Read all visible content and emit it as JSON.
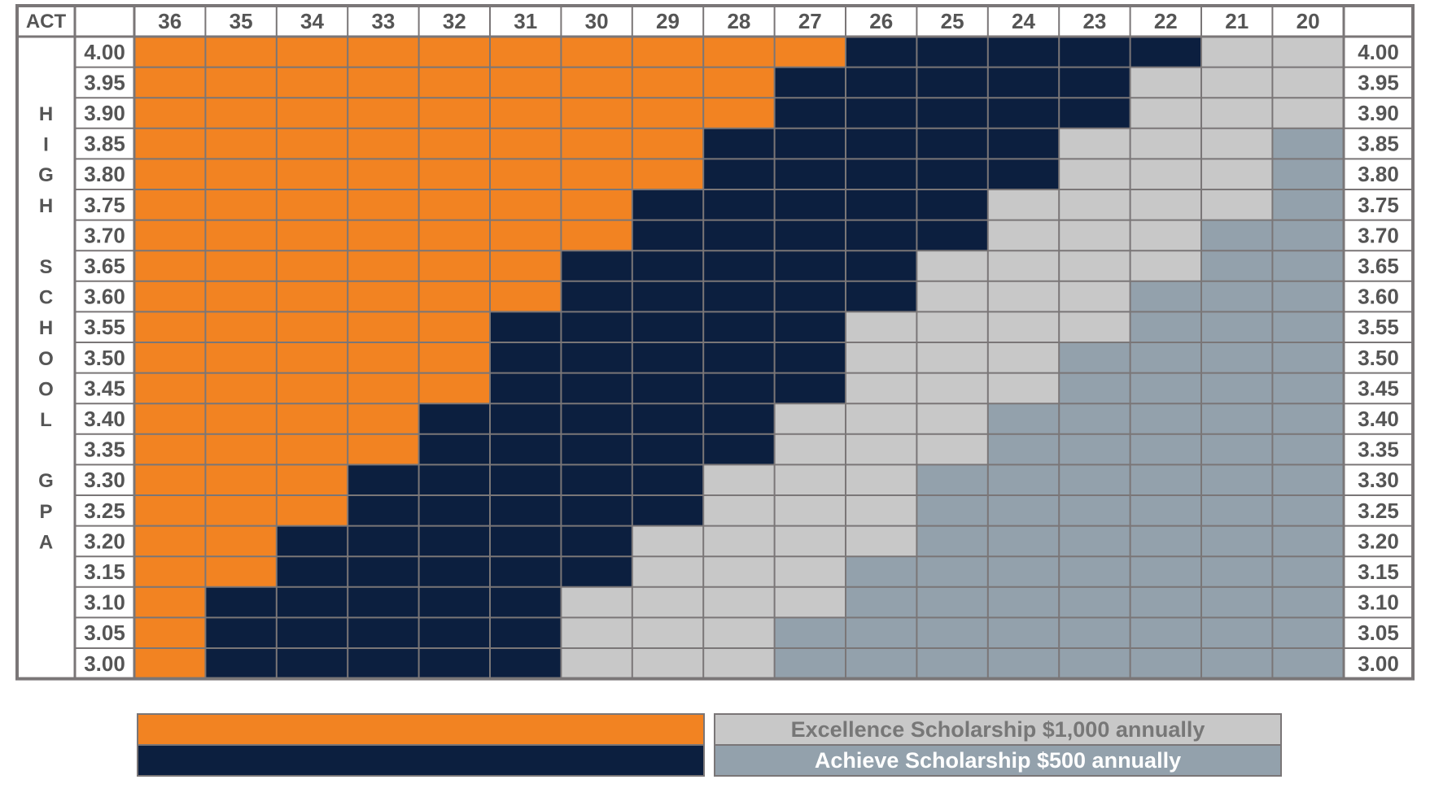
{
  "chart_data": {
    "type": "heatmap",
    "corner_label": "ACT",
    "act_scores": [
      "36",
      "35",
      "34",
      "33",
      "32",
      "31",
      "30",
      "29",
      "28",
      "27",
      "26",
      "25",
      "24",
      "23",
      "22",
      "21",
      "20"
    ],
    "gpa_values": [
      "4.00",
      "3.95",
      "3.90",
      "3.85",
      "3.80",
      "3.75",
      "3.70",
      "3.65",
      "3.60",
      "3.55",
      "3.50",
      "3.45",
      "3.40",
      "3.35",
      "3.30",
      "3.25",
      "3.20",
      "3.15",
      "3.10",
      "3.05",
      "3.00"
    ],
    "side_label_letters": [
      "H",
      "I",
      "G",
      "H",
      "",
      "S",
      "C",
      "H",
      "O",
      "O",
      "L",
      "",
      "G",
      "P",
      "A"
    ],
    "cell_levels": [
      "OOOOOOOOOONNNNNLL",
      "OOOOOOOOONNNNNLLL",
      "OOOOOOOOONNNNNLLL",
      "OOOOOOOONNNNNLLLA",
      "OOOOOOOONNNNNLLLA",
      "OOOOOOONNNNNLLLLA",
      "OOOOOOONNNNNLLLAA",
      "OOOOOONNNNNLLLLAA",
      "OOOOOONNNNNLLLAAA",
      "OOOOONNNNNLLLLAAA",
      "OOOOONNNNNLLLAAAA",
      "OOOOONNNNNLLLAAAA",
      "OOOONNNNNLLLAAAAA",
      "OOOONNNNNLLLAAAAA",
      "OOONNNNNLLLAAAAAA",
      "OOONNNNNLLLAAAAAA",
      "OONNNNNLLLLAAAAAA",
      "OONNNNNLLLAAAAAAA",
      "ONNNNNLLLLAAAAAAA",
      "ONNNNNLLLAAAAAAAA",
      "ONNNNNLLLAAAAAAAA"
    ],
    "level_colors": {
      "O": "#F28322",
      "N": "#0C1F3F",
      "L": "#C8C8C8",
      "A": "#93A1AC"
    },
    "legend": [
      {
        "level": "O",
        "label": "",
        "color": "#F28322"
      },
      {
        "level": "N",
        "label": "",
        "color": "#0C1F3F"
      },
      {
        "level": "L",
        "label": "Excellence Scholarship $1,000 annually",
        "color": "#C8C8C8",
        "text_color": "#777777"
      },
      {
        "level": "A",
        "label": "Achieve Scholarship $500 annually",
        "color": "#93A1AC",
        "text_color": "#FFFFFF"
      }
    ]
  },
  "colors": {
    "border": "#7A7677",
    "grid_line": "#7A7677",
    "text": "#555555",
    "background": "#FFFFFF"
  }
}
